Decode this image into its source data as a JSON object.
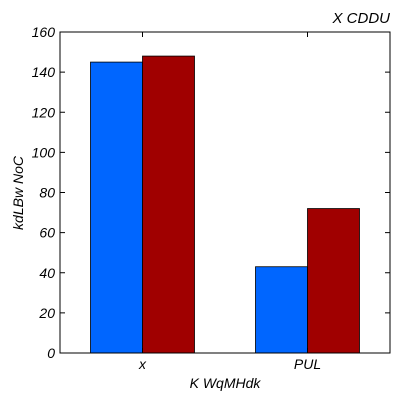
{
  "chart_data": {
    "type": "bar",
    "title": "X CDDU",
    "xlabel": "K WqMHdk",
    "ylabel": "kdLBw NoC",
    "categories": [
      "x",
      "PUL"
    ],
    "series": [
      {
        "values": [
          145,
          43
        ],
        "color": "#0066ff"
      },
      {
        "values": [
          148,
          72
        ],
        "color": "#a00000"
      }
    ],
    "ylim": [
      0,
      160
    ],
    "yticks": [
      0,
      20,
      40,
      60,
      80,
      100,
      120,
      140,
      160
    ],
    "grid": false,
    "legend": "none"
  }
}
